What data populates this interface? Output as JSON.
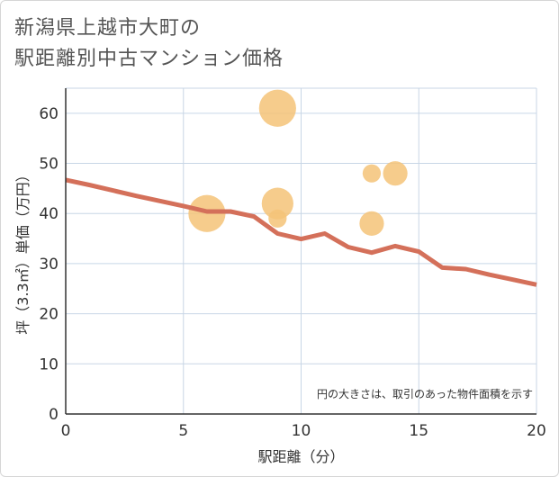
{
  "title_lines": [
    "新潟県上越市大町の",
    "駅距離別中古マンション価格"
  ],
  "chart_data": {
    "type": "scatter",
    "xlabel": "駅距離（分）",
    "ylabel": "坪（3.3㎡）単価（万円）",
    "xlim": [
      0,
      20
    ],
    "ylim": [
      0,
      65
    ],
    "xticks": [
      0,
      5,
      10,
      15,
      20
    ],
    "yticks": [
      0,
      10,
      20,
      30,
      40,
      50,
      60
    ],
    "grid": true,
    "note": "円の大きさは、取引のあった物件面積を示す",
    "colors": {
      "bubble": "#f5c378",
      "line": "#d4705a",
      "grid": "#c8d6e6",
      "axis": "#333333"
    },
    "scatter_points": [
      {
        "x": 6,
        "y": 40,
        "size": 3
      },
      {
        "x": 9,
        "y": 61,
        "size": 3
      },
      {
        "x": 9,
        "y": 42,
        "size": 2
      },
      {
        "x": 9,
        "y": 39,
        "size": 0.4
      },
      {
        "x": 13,
        "y": 48,
        "size": 0.4
      },
      {
        "x": 13,
        "y": 38,
        "size": 1
      },
      {
        "x": 14,
        "y": 48,
        "size": 1
      }
    ],
    "trend_line": {
      "x": [
        0,
        1,
        2,
        3,
        4,
        5,
        6,
        7,
        8,
        9,
        10,
        11,
        12,
        13,
        14,
        15,
        16,
        17,
        18,
        19,
        20
      ],
      "y": [
        46.7,
        45.7,
        44.6,
        43.5,
        42.5,
        41.5,
        40.4,
        40.4,
        39.4,
        36.0,
        34.9,
        36.0,
        33.3,
        32.2,
        33.5,
        32.4,
        29.2,
        28.9,
        27.8,
        26.8,
        25.8
      ]
    }
  }
}
